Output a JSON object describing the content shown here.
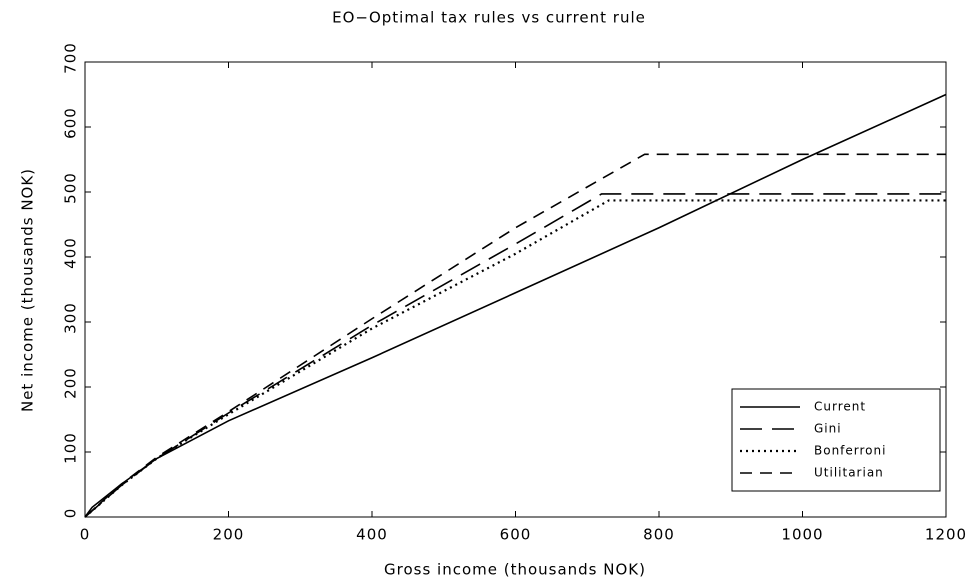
{
  "chart_data": {
    "type": "line",
    "title": "EO−Optimal tax rules vs current rule",
    "xlabel": "Gross income (thousands NOK)",
    "ylabel": "Net income (thousands NOK)",
    "xlim": [
      0,
      1200
    ],
    "xticks": [
      0,
      200,
      400,
      600,
      800,
      1000,
      1200
    ],
    "ylim": [
      0,
      700
    ],
    "yticks": [
      0,
      100,
      200,
      300,
      400,
      500,
      600,
      700
    ],
    "legend": "lower right",
    "series": [
      {
        "name": "Current",
        "color": "#000000",
        "dash": "solid",
        "x": [
          0,
          10,
          50,
          100,
          200,
          400,
          600,
          800,
          1000,
          1200
        ],
        "values": [
          0,
          15,
          50,
          90,
          148,
          245,
          345,
          445,
          550,
          650
        ]
      },
      {
        "name": "Gini",
        "color": "#000000",
        "dash": "longdash",
        "x": [
          0,
          50,
          100,
          200,
          400,
          600,
          720,
          1200
        ],
        "values": [
          0,
          48,
          90,
          160,
          295,
          420,
          497,
          497
        ]
      },
      {
        "name": "Bonferroni",
        "color": "#000000",
        "dash": "dot",
        "x": [
          0,
          50,
          100,
          200,
          400,
          600,
          730,
          1200
        ],
        "values": [
          0,
          48,
          90,
          158,
          290,
          405,
          487,
          487
        ]
      },
      {
        "name": "Utilitarian",
        "color": "#000000",
        "dash": "dash",
        "x": [
          0,
          50,
          100,
          200,
          400,
          600,
          780,
          1200
        ],
        "values": [
          0,
          50,
          92,
          162,
          305,
          445,
          558,
          558
        ]
      }
    ]
  }
}
